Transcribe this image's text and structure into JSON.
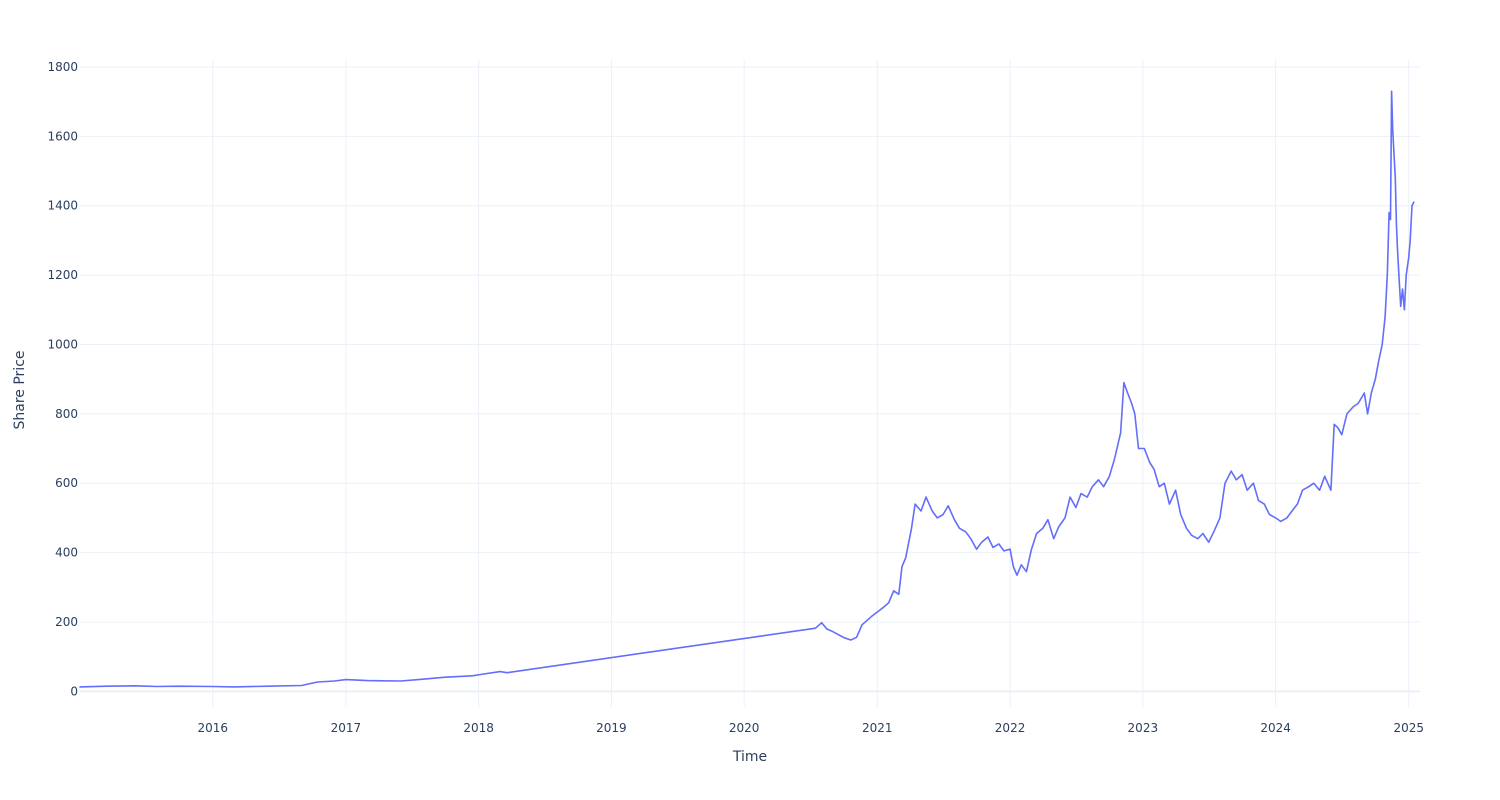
{
  "chart_data": {
    "type": "line",
    "title": "",
    "xlabel": "Time",
    "ylabel": "Share Price",
    "x_type": "date",
    "xlim": [
      "2015-01-01",
      "2025-02-01"
    ],
    "ylim": [
      -45,
      1820
    ],
    "x_ticks": [
      {
        "date": "2016-01-01",
        "label": "2016"
      },
      {
        "date": "2017-01-01",
        "label": "2017"
      },
      {
        "date": "2018-01-01",
        "label": "2018"
      },
      {
        "date": "2019-01-01",
        "label": "2019"
      },
      {
        "date": "2020-01-01",
        "label": "2020"
      },
      {
        "date": "2021-01-01",
        "label": "2021"
      },
      {
        "date": "2022-01-01",
        "label": "2022"
      },
      {
        "date": "2023-01-01",
        "label": "2023"
      },
      {
        "date": "2024-01-01",
        "label": "2024"
      },
      {
        "date": "2025-01-01",
        "label": "2025"
      }
    ],
    "y_ticks": [
      0,
      200,
      400,
      600,
      800,
      1000,
      1200,
      1400,
      1600,
      1800
    ],
    "grid": true,
    "series_color": "#636efa",
    "series": [
      {
        "x": [
          "2015-01-01",
          "2015-03-15",
          "2015-06-01",
          "2015-08-01",
          "2015-10-01",
          "2016-01-01",
          "2016-03-01",
          "2016-06-01",
          "2016-09-01",
          "2016-10-15",
          "2016-12-01",
          "2017-01-01",
          "2017-03-01",
          "2017-06-01",
          "2017-08-01",
          "2017-10-01",
          "2017-12-15",
          "2018-01-15",
          "2018-03-01",
          "2018-03-20",
          "2020-07-15",
          "2020-08-01",
          "2020-08-15",
          "2020-09-01",
          "2020-10-01",
          "2020-10-20",
          "2020-11-05",
          "2020-11-20",
          "2020-12-15",
          "2021-01-15",
          "2021-02-01",
          "2021-02-15",
          "2021-03-01",
          "2021-03-10",
          "2021-03-20",
          "2021-04-05",
          "2021-04-15",
          "2021-05-01",
          "2021-05-15",
          "2021-06-01",
          "2021-06-15",
          "2021-07-01",
          "2021-07-15",
          "2021-08-01",
          "2021-08-15",
          "2021-09-01",
          "2021-09-15",
          "2021-10-01",
          "2021-10-15",
          "2021-11-01",
          "2021-11-15",
          "2021-12-01",
          "2021-12-15",
          "2022-01-01",
          "2022-01-10",
          "2022-01-20",
          "2022-02-01",
          "2022-02-15",
          "2022-03-01",
          "2022-03-15",
          "2022-04-01",
          "2022-04-15",
          "2022-05-01",
          "2022-05-15",
          "2022-06-01",
          "2022-06-15",
          "2022-07-01",
          "2022-07-15",
          "2022-08-01",
          "2022-08-15",
          "2022-09-01",
          "2022-09-15",
          "2022-10-01",
          "2022-10-15",
          "2022-11-01",
          "2022-11-10",
          "2022-11-20",
          "2022-12-01",
          "2022-12-10",
          "2022-12-20",
          "2023-01-05",
          "2023-01-20",
          "2023-02-01",
          "2023-02-15",
          "2023-03-01",
          "2023-03-15",
          "2023-04-01",
          "2023-04-15",
          "2023-05-01",
          "2023-05-15",
          "2023-06-01",
          "2023-06-15",
          "2023-07-01",
          "2023-07-15",
          "2023-08-01",
          "2023-08-15",
          "2023-09-01",
          "2023-09-15",
          "2023-10-01",
          "2023-10-15",
          "2023-11-01",
          "2023-11-15",
          "2023-12-01",
          "2023-12-15",
          "2024-01-01",
          "2024-01-15",
          "2024-02-01",
          "2024-02-15",
          "2024-03-01",
          "2024-03-15",
          "2024-04-01",
          "2024-04-15",
          "2024-05-01",
          "2024-05-15",
          "2024-06-01",
          "2024-06-10",
          "2024-06-20",
          "2024-07-01",
          "2024-07-15",
          "2024-08-01",
          "2024-08-15",
          "2024-09-01",
          "2024-09-10",
          "2024-09-20",
          "2024-10-01",
          "2024-10-10",
          "2024-10-20",
          "2024-10-28",
          "2024-11-03",
          "2024-11-08",
          "2024-11-12",
          "2024-11-15",
          "2024-11-18",
          "2024-11-21",
          "2024-11-25",
          "2024-11-28",
          "2024-12-01",
          "2024-12-05",
          "2024-12-10",
          "2024-12-15",
          "2024-12-20",
          "2024-12-25",
          "2025-01-01",
          "2025-01-05",
          "2025-01-10",
          "2025-01-15"
        ],
        "y": [
          13,
          15,
          16,
          14,
          15,
          14,
          13,
          15,
          17,
          27,
          30,
          34,
          31,
          30,
          35,
          41,
          45,
          50,
          57,
          54,
          182,
          198,
          180,
          172,
          155,
          148,
          156,
          192,
          215,
          240,
          255,
          290,
          280,
          360,
          385,
          470,
          540,
          520,
          560,
          520,
          500,
          510,
          535,
          495,
          470,
          460,
          440,
          410,
          430,
          445,
          415,
          425,
          405,
          410,
          360,
          335,
          365,
          345,
          410,
          455,
          470,
          495,
          440,
          475,
          500,
          560,
          530,
          570,
          560,
          590,
          610,
          590,
          620,
          670,
          745,
          890,
          860,
          830,
          800,
          700,
          700,
          660,
          640,
          590,
          600,
          540,
          580,
          510,
          470,
          450,
          440,
          455,
          430,
          460,
          500,
          600,
          635,
          610,
          625,
          580,
          600,
          550,
          540,
          510,
          500,
          490,
          500,
          520,
          540,
          580,
          590,
          600,
          580,
          620,
          580,
          770,
          760,
          740,
          800,
          820,
          830,
          860,
          800,
          860,
          900,
          950,
          1000,
          1080,
          1200,
          1380,
          1360,
          1730,
          1620,
          1560,
          1480,
          1350,
          1280,
          1200,
          1110,
          1160,
          1100,
          1200,
          1250,
          1300,
          1400,
          1410
        ]
      }
    ]
  }
}
